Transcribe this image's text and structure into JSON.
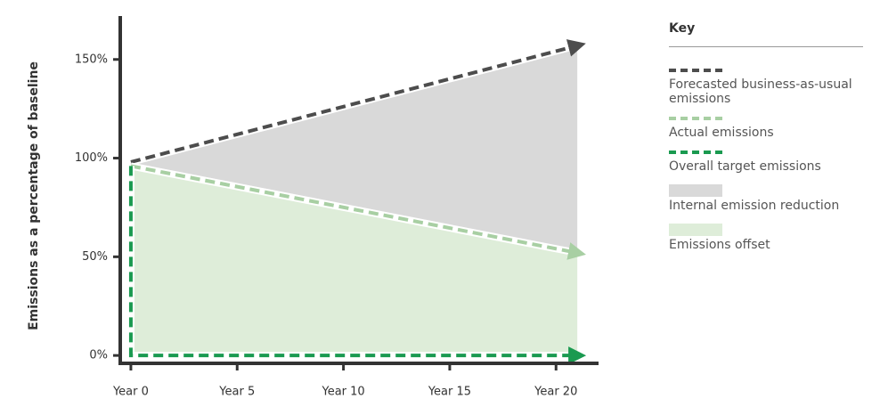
{
  "chart_data": {
    "type": "line",
    "ylabel": "Emissions as a percentage of baseline",
    "legend_title": "Key",
    "xlim": [
      -0.5,
      22
    ],
    "xticks": [
      {
        "value": 0,
        "label": "Year 0"
      },
      {
        "value": 5,
        "label": "Year 5"
      },
      {
        "value": 10,
        "label": "Year 10"
      },
      {
        "value": 15,
        "label": "Year 15"
      },
      {
        "value": 20,
        "label": "Year 20"
      }
    ],
    "ylim": [
      -4,
      172
    ],
    "yticks": [
      {
        "value": 0,
        "label": "0%"
      },
      {
        "value": 50,
        "label": "50%"
      },
      {
        "value": 100,
        "label": "100%"
      },
      {
        "value": 150,
        "label": "150%"
      }
    ],
    "legend": "right",
    "series": [
      {
        "name": "Forecasted business-as-usual emissions",
        "color": "#4d4d4d",
        "kind": "line",
        "x": [
          0,
          21
        ],
        "values": [
          98,
          157
        ]
      },
      {
        "name": "Actual emissions",
        "color": "#a8cfa3",
        "kind": "line",
        "x": [
          0,
          21
        ],
        "values": [
          96,
          52
        ]
      },
      {
        "name": "Overall target emissions",
        "color": "#1a9a50",
        "kind": "line",
        "x": [
          0,
          0,
          21
        ],
        "values": [
          96,
          0,
          0
        ]
      },
      {
        "name": "Internal emission reduction",
        "color": "#d9d9d9",
        "kind": "area",
        "between": [
          0,
          1
        ]
      },
      {
        "name": "Emissions offset",
        "color": "#deedd9",
        "kind": "area",
        "between": [
          1,
          2
        ]
      }
    ]
  }
}
